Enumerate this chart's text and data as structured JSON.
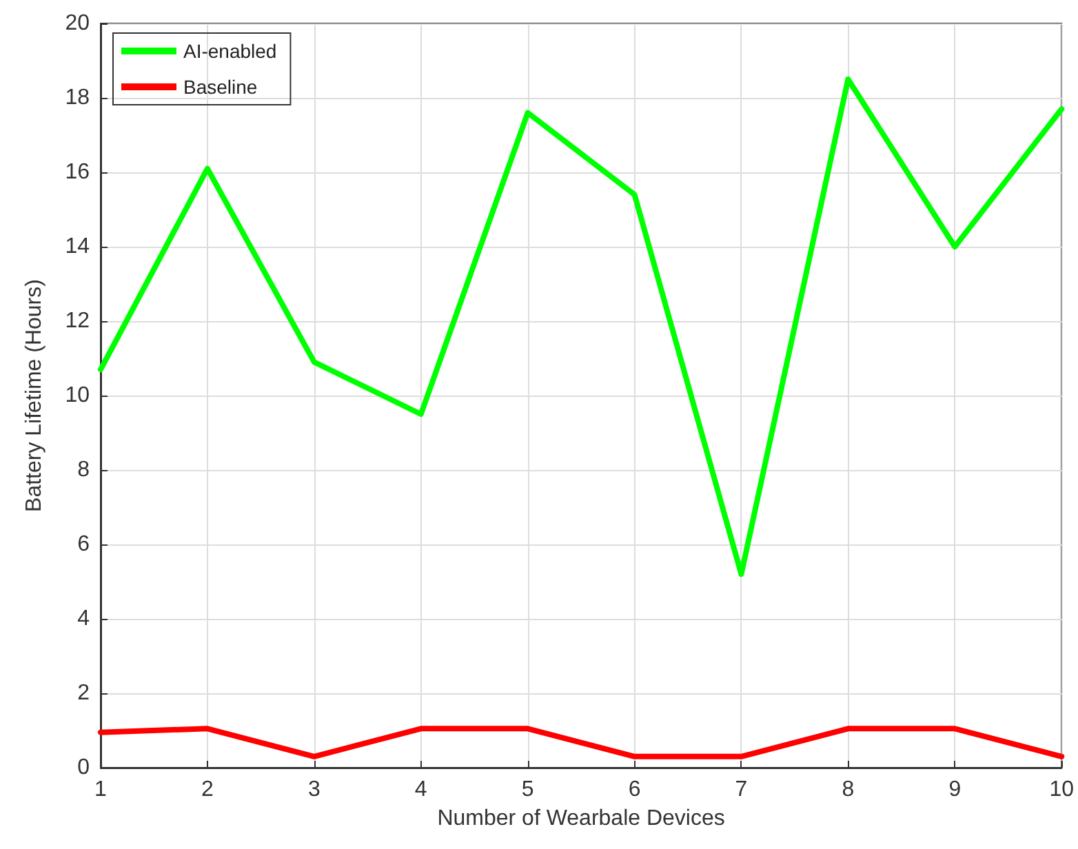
{
  "chart_data": {
    "type": "line",
    "xlabel": "Number of Wearbale Devices",
    "ylabel": "Battery Lifetime (Hours)",
    "x": [
      1,
      2,
      3,
      4,
      5,
      6,
      7,
      8,
      9,
      10
    ],
    "series": [
      {
        "name": "AI-enabled",
        "color": "#00ff00",
        "values": [
          10.7,
          16.1,
          10.9,
          9.5,
          17.6,
          15.4,
          5.2,
          18.5,
          14.0,
          17.7
        ]
      },
      {
        "name": "Baseline",
        "color": "#ff0000",
        "values": [
          0.95,
          1.05,
          0.3,
          1.05,
          1.05,
          0.3,
          0.3,
          1.05,
          1.05,
          0.3
        ]
      }
    ],
    "xlim": [
      1,
      10
    ],
    "xticks": [
      1,
      2,
      3,
      4,
      5,
      6,
      7,
      8,
      9,
      10
    ],
    "ylim": [
      0,
      20
    ],
    "yticks": [
      0,
      2,
      4,
      6,
      8,
      10,
      12,
      14,
      16,
      18,
      20
    ],
    "grid": true,
    "legend": "top left",
    "marker": "none",
    "line_style": "solid"
  }
}
